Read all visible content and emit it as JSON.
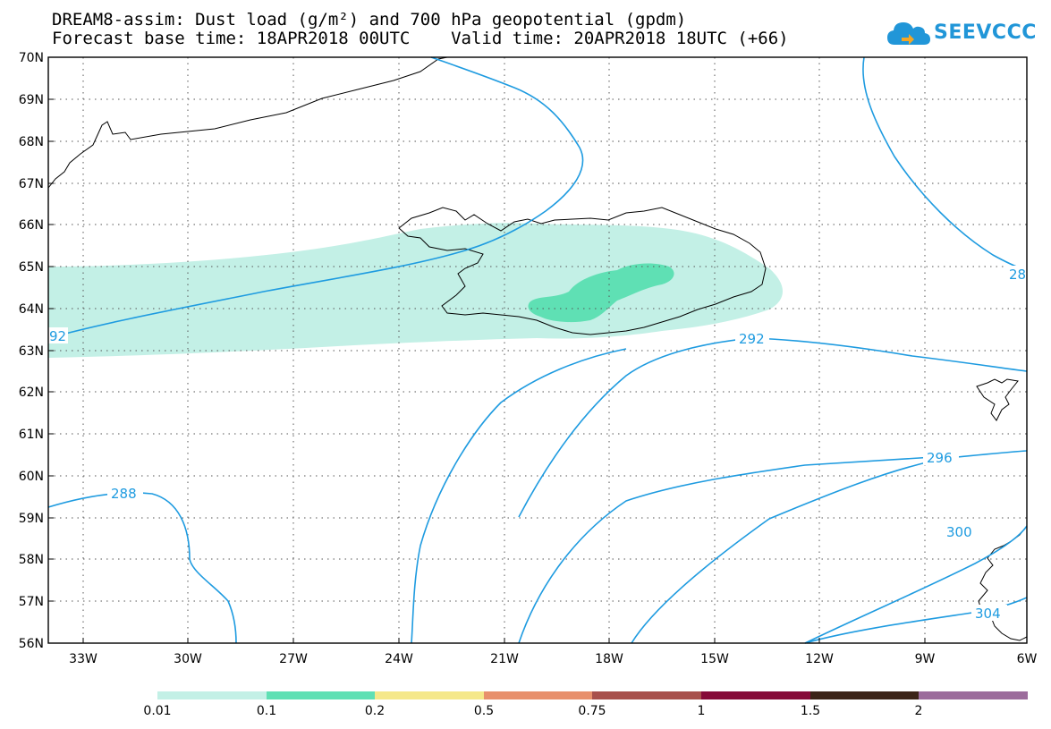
{
  "header": {
    "title_line1": "DREAM8-assim: Dust load (g/m²) and 700 hPa geopotential (gpdm)",
    "title_line2": "Forecast base time: 18APR2018 00UTC    Valid time: 20APR2018 18UTC (+66)"
  },
  "logo": {
    "text": "SEEVCCC",
    "icon": "cloud-icon",
    "color": "#2196d8"
  },
  "map": {
    "lat_labels": [
      "70N",
      "69N",
      "68N",
      "67N",
      "66N",
      "65N",
      "64N",
      "63N",
      "62N",
      "61N",
      "60N",
      "59N",
      "58N",
      "57N",
      "56N"
    ],
    "lon_labels": [
      "33W",
      "30W",
      "27W",
      "24W",
      "21W",
      "18W",
      "15W",
      "12W",
      "9W",
      "6W"
    ],
    "contour_labels": [
      "92",
      "292",
      "288",
      "296",
      "300",
      "304",
      "28"
    ],
    "contour_color": "#1e9be0",
    "coastline_color": "#000000"
  },
  "colorbar": {
    "labels": [
      "0.01",
      "0.1",
      "0.2",
      "0.5",
      "0.75",
      "1",
      "1.5",
      "2"
    ],
    "colors": [
      "#c3f0e6",
      "#5fe0b4",
      "#f5e88a",
      "#e8906c",
      "#a8504c",
      "#860a38",
      "#3c2418",
      "#9c6c9c"
    ]
  }
}
